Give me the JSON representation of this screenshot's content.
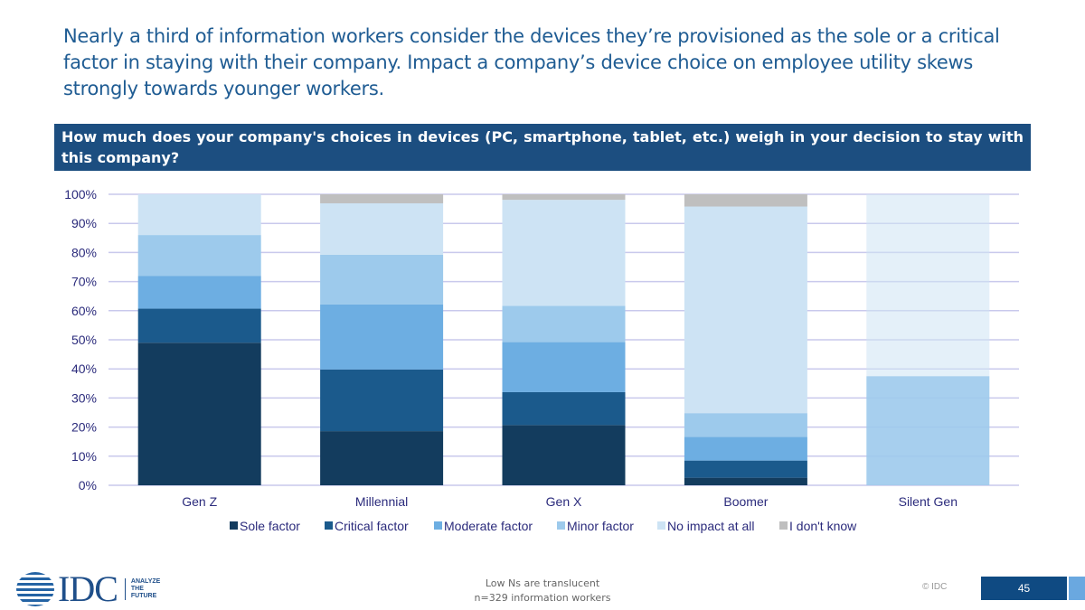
{
  "headline": "Nearly a third of information workers consider the devices they’re provisioned as the sole or a critical factor in staying with their company. Impact a company’s device choice on employee utility skews strongly towards younger workers.",
  "question": "How much does your company's choices in devices (PC, smartphone, tablet, etc.) weigh in your decision to stay with this company?",
  "chart_data": {
    "type": "bar",
    "stacked": true,
    "categories": [
      "Gen Z",
      "Millennial",
      "Gen X",
      "Boomer",
      "Silent Gen"
    ],
    "series": [
      {
        "name": "Sole factor",
        "color": "#133c5e",
        "values": [
          49.0,
          18.6,
          20.7,
          2.6,
          0
        ]
      },
      {
        "name": "Critical factor",
        "color": "#1b5a8c",
        "values": [
          11.7,
          21.2,
          11.3,
          5.9,
          0
        ]
      },
      {
        "name": "Moderate factor",
        "color": "#6daee2",
        "values": [
          11.3,
          22.4,
          17.2,
          8.1,
          0
        ]
      },
      {
        "name": "Minor factor",
        "color": "#9dcaec",
        "values": [
          14.0,
          17.0,
          12.5,
          8.2,
          37.5
        ]
      },
      {
        "name": "No impact at all",
        "color": "#cde3f4",
        "values": [
          14.0,
          17.7,
          36.4,
          71.0,
          62.5
        ]
      },
      {
        "name": "I don't know",
        "color": "#bfbfbf",
        "values": [
          0,
          3.1,
          1.9,
          4.2,
          0
        ]
      }
    ],
    "translucent_categories": [
      "Silent Gen"
    ],
    "ylim": [
      0,
      100
    ],
    "yticks": [
      "0%",
      "10%",
      "20%",
      "30%",
      "40%",
      "50%",
      "60%",
      "70%",
      "80%",
      "90%",
      "100%"
    ],
    "legend": "bottom",
    "grid": true
  },
  "footer": {
    "note1": "Low Ns are translucent",
    "note2": "n=329 information workers",
    "copyright": "© IDC",
    "page": "45",
    "logo": "IDC",
    "tagline": "ANALYZE THE FUTURE"
  }
}
